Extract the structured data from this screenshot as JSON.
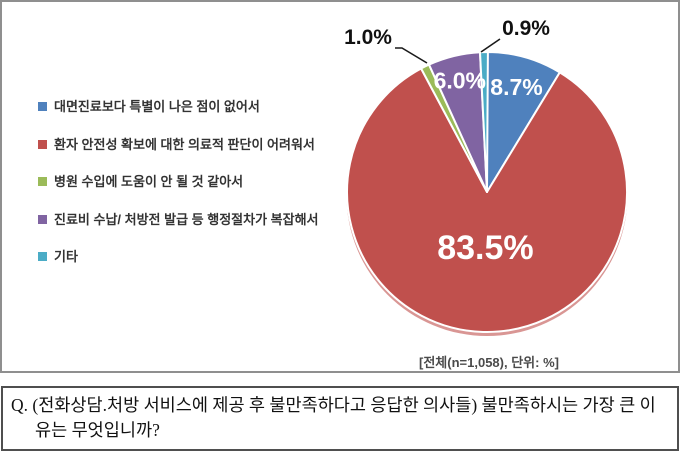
{
  "chart_data": {
    "type": "pie",
    "labels": [
      "대면진료보다 특별이 나은 점이 없어서",
      "환자 안전성 확보에 대한 의료적 판단이 어려워서",
      "병원 수입에 도움이 안 될 것 같아서",
      "진료비 수납/ 처방전 발급 등 행정절차가 복잡해서",
      "기타"
    ],
    "values": [
      8.7,
      83.5,
      1.0,
      6.0,
      0.9
    ],
    "colors": [
      "#4F81BD",
      "#C0504D",
      "#9BBB59",
      "#8064A2",
      "#4BACC6"
    ],
    "value_labels": [
      "8.7%",
      "83.5%",
      "1.0%",
      "6.0%",
      "0.9%"
    ],
    "legend_position": "left",
    "start_angle_deg": 0,
    "direction": "clockwise",
    "note": "[전체(n=1,058), 단위: %]"
  },
  "question": {
    "prefix": "Q.",
    "text": "(전화상담.처방 서비스에 제공 후 불만족하다고 응답한 의사들) 불만족하시는 가장 큰 이유는 무엇입니까?"
  }
}
